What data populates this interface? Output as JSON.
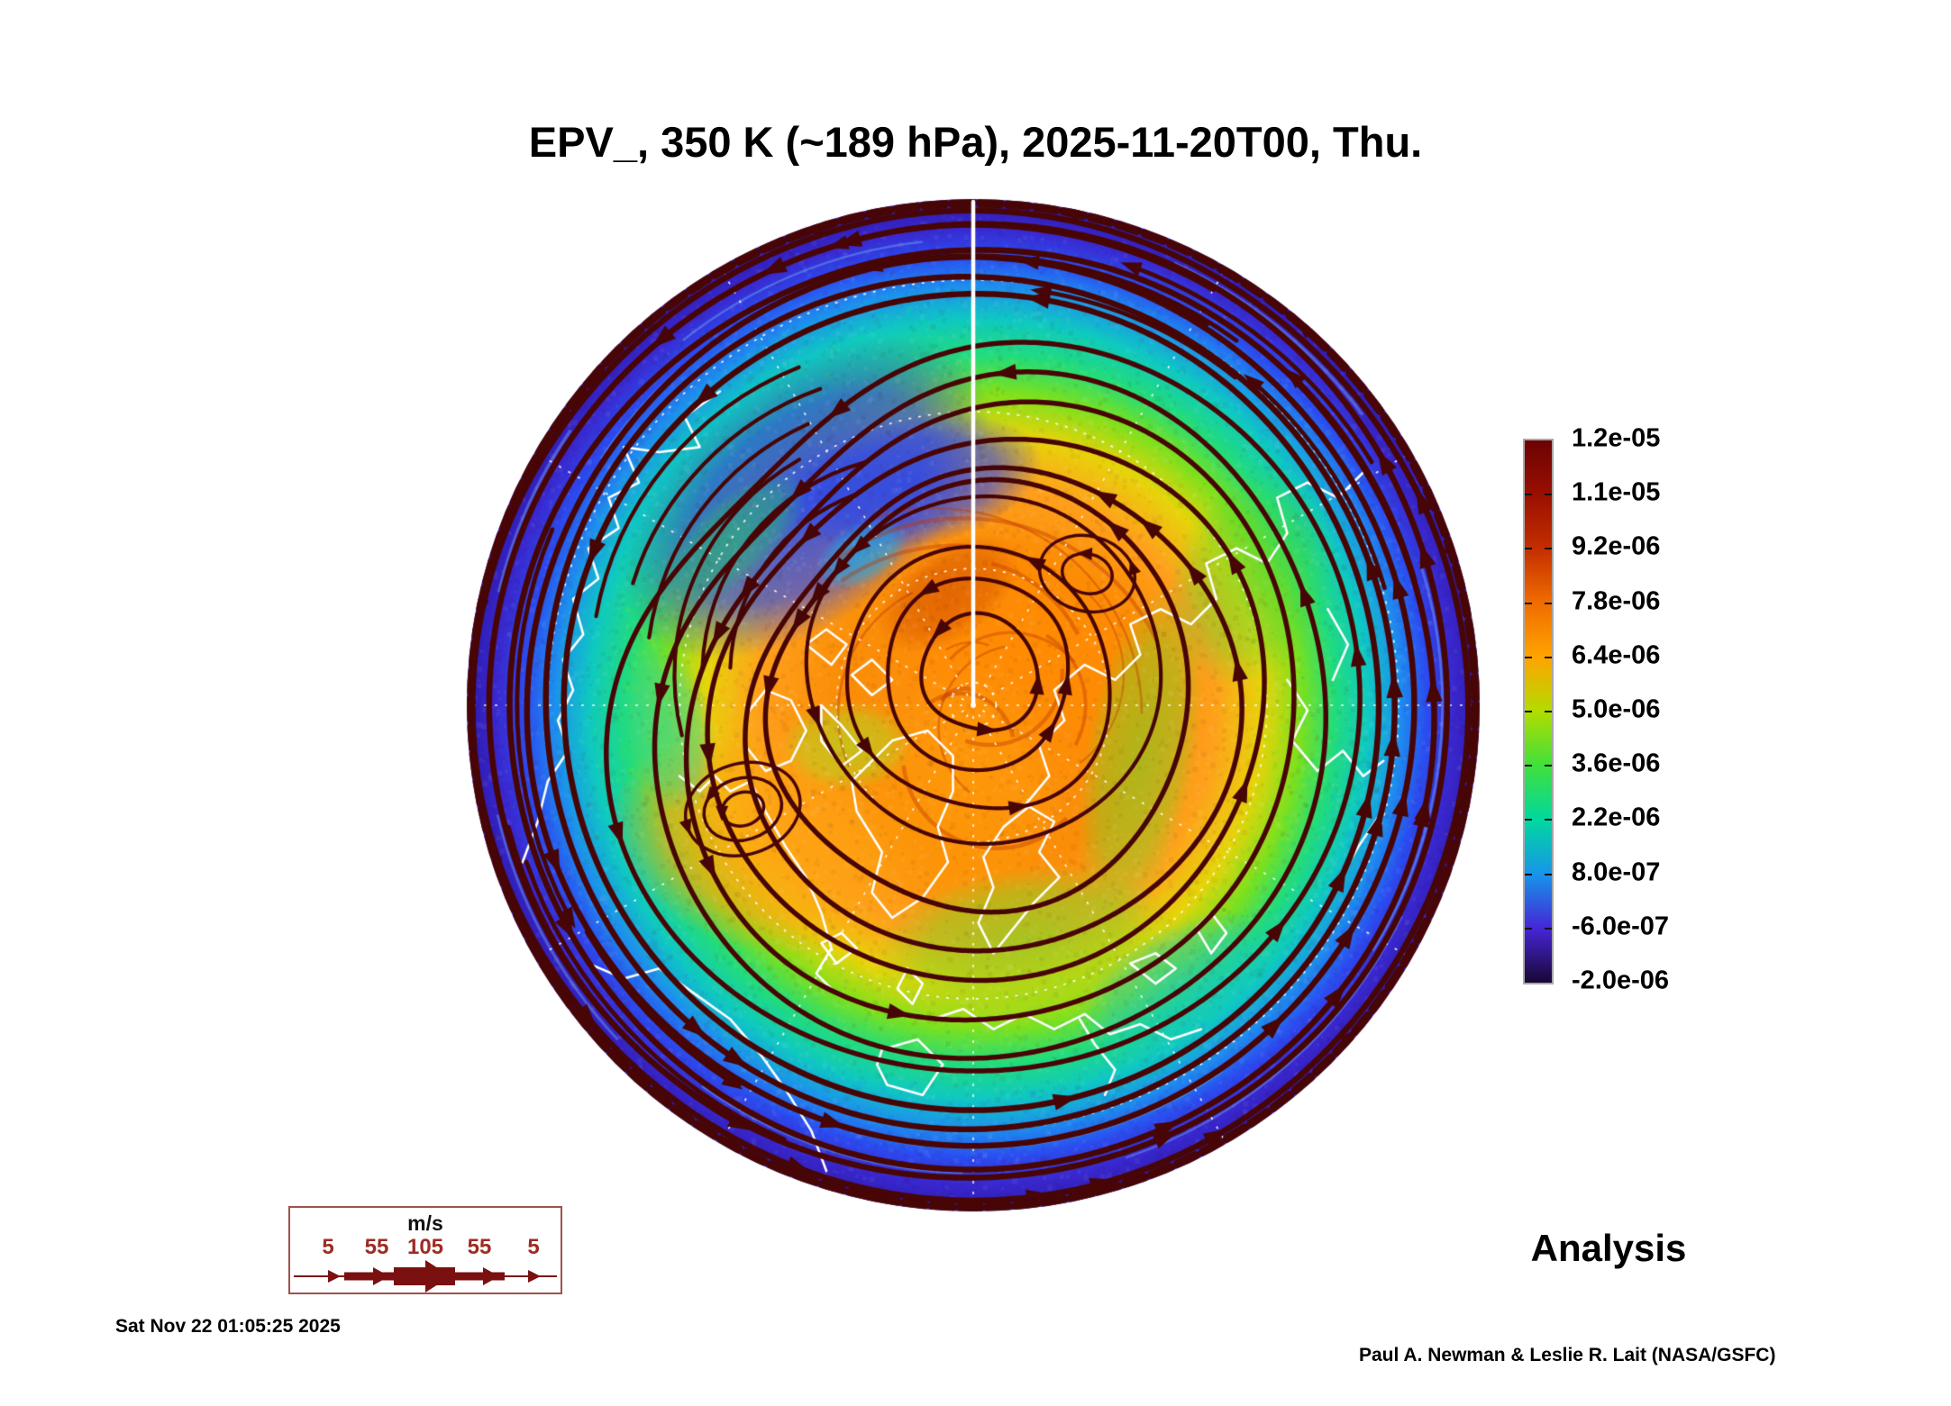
{
  "title": "EPV_, 350 K (~189 hPa), 2025-11-20T00, Thu.",
  "footer": {
    "run_label": "Analysis",
    "timestamp": "Sat Nov 22 01:05:25 2025",
    "credit": "Paul A. Newman & Leslie R. Lait (NASA/GSFC)"
  },
  "wind_legend": {
    "units": "m/s",
    "values": [
      "5",
      "55",
      "105",
      "55",
      "5"
    ],
    "arrow_color": "#7a1110",
    "label_color": "#9e2b24",
    "border_color": "#a1524c"
  },
  "chart_data": {
    "type": "heatmap",
    "title": "EPV_, 350 K (~189 hPa), 2025-11-20T00, Thu.",
    "field": "Ertel potential vorticity",
    "level": "350 K (~189 hPa)",
    "valid_time": "2025-11-20T00",
    "projection": "north polar stereographic",
    "legend_position": "right",
    "colorbar": {
      "ticks": [
        "1.2e-05",
        "1.1e-05",
        "9.2e-06",
        "7.8e-06",
        "6.4e-06",
        "5.0e-06",
        "3.6e-06",
        "2.2e-06",
        "8.0e-07",
        "-6.0e-07",
        "-2.0e-06"
      ],
      "tick_values": [
        1.2e-05,
        1.1e-05,
        9.2e-06,
        7.8e-06,
        6.4e-06,
        5e-06,
        3.6e-06,
        2.2e-06,
        8e-07,
        -6e-07,
        -2e-06
      ],
      "colors": [
        "#6b0303",
        "#9a0f01",
        "#c42f00",
        "#f06c00",
        "#ffa400",
        "#b2dc00",
        "#3fe03c",
        "#00d89e",
        "#1795ea",
        "#4625d6",
        "#190733"
      ]
    },
    "map": {
      "streamline_color": "#470505",
      "coastline_color": "#ffffff",
      "graticule_color": "#ffffff",
      "radial_stops": [
        [
          0.0,
          "#ff9414"
        ],
        [
          0.3,
          "#fb8d07"
        ],
        [
          0.45,
          "#ffa01c"
        ],
        [
          0.55,
          "#e8d40a"
        ],
        [
          0.63,
          "#7ce11e"
        ],
        [
          0.7,
          "#22dc7c"
        ],
        [
          0.77,
          "#0fc9c2"
        ],
        [
          0.835,
          "#1e8eee"
        ],
        [
          0.89,
          "#2b4df0"
        ],
        [
          0.945,
          "#3a28cf"
        ],
        [
          1.0,
          "#2d1bb0"
        ]
      ],
      "blobs": [
        {
          "x": -0.33,
          "y": -0.41,
          "rx": 0.42,
          "ry": 0.24,
          "rot": -38,
          "color": "#2f49ec",
          "alpha": 0.95
        },
        {
          "x": -0.12,
          "y": -0.44,
          "rx": 0.26,
          "ry": 0.13,
          "rot": -12,
          "color": "#2c47e8",
          "alpha": 0.85
        },
        {
          "x": -0.47,
          "y": -0.33,
          "rx": 0.18,
          "ry": 0.08,
          "rot": -42,
          "color": "#27c06c",
          "alpha": 0.6
        },
        {
          "x": -0.22,
          "y": -0.3,
          "rx": 0.1,
          "ry": 0.06,
          "rot": -30,
          "color": "#19b8e8",
          "alpha": 0.65
        },
        {
          "x": 0.12,
          "y": -0.1,
          "rx": 0.34,
          "ry": 0.26,
          "rot": 25,
          "color": "#ff8a00",
          "alpha": 0.85
        },
        {
          "x": -0.4,
          "y": 0.27,
          "rx": 0.32,
          "ry": 0.22,
          "rot": 15,
          "color": "#ffa312",
          "alpha": 0.85
        },
        {
          "x": -0.02,
          "y": 0.18,
          "rx": 0.2,
          "ry": 0.26,
          "rot": 0,
          "color": "#ff9a08",
          "alpha": 0.7
        },
        {
          "x": 0.33,
          "y": 0.1,
          "rx": 0.11,
          "ry": 0.34,
          "rot": 10,
          "color": "#63df2e",
          "alpha": 0.5
        },
        {
          "x": -0.25,
          "y": 0.08,
          "rx": 0.13,
          "ry": 0.09,
          "rot": 0,
          "color": "#a8e224",
          "alpha": 0.6
        },
        {
          "x": 0.1,
          "y": 0.47,
          "rx": 0.3,
          "ry": 0.15,
          "rot": -8,
          "color": "#6fdc26",
          "alpha": 0.6
        },
        {
          "x": -0.6,
          "y": 0.05,
          "rx": 0.09,
          "ry": 0.17,
          "rot": -12,
          "color": "#2fd2b0",
          "alpha": 0.55
        },
        {
          "x": 0.4,
          "y": 0.55,
          "rx": 0.22,
          "ry": 0.11,
          "rot": -30,
          "color": "#17c0d8",
          "alpha": 0.5
        },
        {
          "x": -0.05,
          "y": -0.22,
          "rx": 0.16,
          "ry": 0.09,
          "rot": -35,
          "color": "#c23a00",
          "alpha": 0.45
        },
        {
          "x": 0.55,
          "y": -0.25,
          "rx": 0.16,
          "ry": 0.22,
          "rot": 20,
          "color": "#49d43c",
          "alpha": 0.45
        }
      ],
      "coastlines": [
        [
          [
            -0.5,
            -0.62
          ],
          [
            -0.57,
            -0.57
          ],
          [
            -0.54,
            -0.51
          ],
          [
            -0.62,
            -0.5
          ],
          [
            -0.69,
            -0.51
          ],
          [
            -0.66,
            -0.44
          ],
          [
            -0.72,
            -0.41
          ],
          [
            -0.7,
            -0.35
          ],
          [
            -0.76,
            -0.31
          ],
          [
            -0.74,
            -0.25
          ],
          [
            -0.79,
            -0.21
          ],
          [
            -0.77,
            -0.14
          ],
          [
            -0.81,
            -0.09
          ],
          [
            -0.79,
            -0.03
          ],
          [
            -0.82,
            0.03
          ],
          [
            -0.8,
            0.09
          ],
          [
            -0.84,
            0.15
          ],
          [
            -0.86,
            0.23
          ],
          [
            -0.89,
            0.31
          ]
        ],
        [
          [
            -0.76,
            0.51
          ],
          [
            -0.69,
            0.54
          ],
          [
            -0.62,
            0.52
          ],
          [
            -0.55,
            0.57
          ],
          [
            -0.48,
            0.62
          ],
          [
            -0.42,
            0.69
          ],
          [
            -0.37,
            0.76
          ],
          [
            -0.32,
            0.84
          ],
          [
            -0.29,
            0.92
          ]
        ],
        [
          [
            -0.58,
            0.14
          ],
          [
            -0.54,
            0.17
          ],
          [
            -0.51,
            0.14
          ],
          [
            -0.48,
            0.17
          ],
          [
            -0.44,
            0.15
          ]
        ],
        [
          [
            -0.44,
            0.15
          ],
          [
            -0.41,
            0.21
          ],
          [
            -0.37,
            0.28
          ],
          [
            -0.33,
            0.34
          ],
          [
            -0.3,
            0.41
          ],
          [
            -0.28,
            0.48
          ],
          [
            -0.31,
            0.53
          ],
          [
            -0.27,
            0.57
          ]
        ],
        [
          [
            -0.45,
            0.02
          ],
          [
            -0.41,
            -0.03
          ],
          [
            -0.36,
            -0.01
          ],
          [
            -0.33,
            0.05
          ],
          [
            -0.36,
            0.11
          ],
          [
            -0.41,
            0.13
          ],
          [
            -0.45,
            0.08
          ],
          [
            -0.45,
            0.02
          ]
        ],
        [
          [
            -0.33,
            -0.12
          ],
          [
            -0.29,
            -0.15
          ],
          [
            -0.25,
            -0.12
          ],
          [
            -0.28,
            -0.08
          ],
          [
            -0.33,
            -0.12
          ]
        ],
        [
          [
            -0.24,
            -0.06
          ],
          [
            -0.2,
            -0.09
          ],
          [
            -0.16,
            -0.05
          ],
          [
            -0.2,
            -0.02
          ],
          [
            -0.24,
            -0.06
          ]
        ],
        [
          [
            -0.3,
            0.0
          ],
          [
            -0.26,
            0.04
          ],
          [
            -0.22,
            0.09
          ],
          [
            -0.26,
            0.12
          ],
          [
            -0.3,
            0.07
          ],
          [
            -0.3,
            0.0
          ]
        ],
        [
          [
            -0.21,
            0.12
          ],
          [
            -0.16,
            0.07
          ],
          [
            -0.09,
            0.05
          ],
          [
            -0.04,
            0.1
          ],
          [
            -0.04,
            0.17
          ],
          [
            -0.07,
            0.24
          ],
          [
            -0.05,
            0.31
          ],
          [
            -0.1,
            0.38
          ],
          [
            -0.16,
            0.42
          ],
          [
            -0.2,
            0.37
          ],
          [
            -0.18,
            0.29
          ],
          [
            -0.23,
            0.21
          ],
          [
            -0.24,
            0.15
          ],
          [
            -0.21,
            0.12
          ]
        ],
        [
          [
            -0.3,
            0.47
          ],
          [
            -0.26,
            0.45
          ],
          [
            -0.23,
            0.48
          ],
          [
            -0.27,
            0.51
          ],
          [
            -0.3,
            0.47
          ]
        ],
        [
          [
            -0.13,
            0.52
          ],
          [
            -0.1,
            0.55
          ],
          [
            -0.12,
            0.59
          ],
          [
            -0.15,
            0.56
          ],
          [
            -0.13,
            0.52
          ]
        ],
        [
          [
            0.02,
            0.3
          ],
          [
            0.06,
            0.24
          ],
          [
            0.11,
            0.2
          ],
          [
            0.16,
            0.23
          ],
          [
            0.13,
            0.29
          ],
          [
            0.17,
            0.34
          ],
          [
            0.12,
            0.39
          ],
          [
            0.08,
            0.44
          ],
          [
            0.04,
            0.49
          ],
          [
            0.01,
            0.43
          ],
          [
            0.04,
            0.36
          ],
          [
            0.02,
            0.3
          ]
        ],
        [
          [
            -0.08,
            0.62
          ],
          [
            -0.02,
            0.6
          ],
          [
            0.04,
            0.64
          ],
          [
            0.1,
            0.61
          ],
          [
            0.16,
            0.64
          ],
          [
            0.22,
            0.61
          ],
          [
            0.27,
            0.65
          ],
          [
            0.33,
            0.63
          ],
          [
            0.39,
            0.66
          ],
          [
            0.45,
            0.64
          ]
        ],
        [
          [
            -0.18,
            0.68
          ],
          [
            -0.11,
            0.66
          ],
          [
            -0.06,
            0.71
          ],
          [
            -0.1,
            0.77
          ],
          [
            -0.17,
            0.75
          ],
          [
            -0.19,
            0.71
          ],
          [
            -0.18,
            0.68
          ]
        ],
        [
          [
            0.21,
            0.62
          ],
          [
            0.24,
            0.67
          ],
          [
            0.28,
            0.72
          ],
          [
            0.26,
            0.77
          ]
        ],
        [
          [
            0.31,
            0.51
          ],
          [
            0.36,
            0.49
          ],
          [
            0.4,
            0.52
          ],
          [
            0.36,
            0.55
          ],
          [
            0.31,
            0.51
          ]
        ],
        [
          [
            0.44,
            0.44
          ],
          [
            0.47,
            0.41
          ],
          [
            0.5,
            0.45
          ],
          [
            0.47,
            0.49
          ],
          [
            0.44,
            0.44
          ]
        ],
        [
          [
            0.1,
            0.2
          ],
          [
            0.15,
            0.14
          ],
          [
            0.13,
            0.08
          ],
          [
            0.18,
            0.03
          ],
          [
            0.16,
            -0.03
          ],
          [
            0.22,
            -0.08
          ],
          [
            0.28,
            -0.05
          ],
          [
            0.33,
            -0.1
          ],
          [
            0.31,
            -0.16
          ],
          [
            0.37,
            -0.19
          ],
          [
            0.43,
            -0.16
          ],
          [
            0.48,
            -0.21
          ],
          [
            0.46,
            -0.28
          ],
          [
            0.52,
            -0.31
          ],
          [
            0.58,
            -0.28
          ],
          [
            0.62,
            -0.34
          ],
          [
            0.6,
            -0.41
          ],
          [
            0.66,
            -0.44
          ],
          [
            0.72,
            -0.41
          ],
          [
            0.77,
            -0.46
          ]
        ],
        [
          [
            0.62,
            -0.05
          ],
          [
            0.66,
            0.01
          ],
          [
            0.63,
            0.07
          ],
          [
            0.68,
            0.13
          ],
          [
            0.73,
            0.09
          ],
          [
            0.77,
            0.14
          ],
          [
            0.81,
            0.11
          ]
        ],
        [
          [
            0.7,
            -0.19
          ],
          [
            0.74,
            -0.12
          ],
          [
            0.71,
            -0.05
          ]
        ],
        [
          [
            0.8,
            0.22
          ],
          [
            0.76,
            0.28
          ],
          [
            0.72,
            0.35
          ]
        ]
      ]
    }
  }
}
